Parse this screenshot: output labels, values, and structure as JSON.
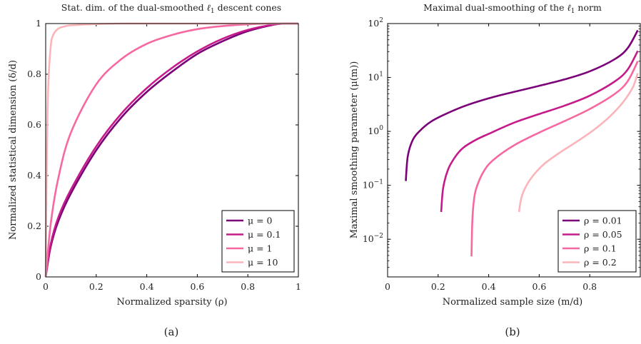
{
  "captions": {
    "a": "(a)",
    "b": "(b)"
  },
  "chart_data": [
    {
      "type": "line",
      "title": "Stat. dim. of the dual-smoothed ℓ1 descent cones",
      "title_parts": [
        "Stat. dim. of the dual-smoothed ",
        "ℓ",
        "1",
        " descent cones"
      ],
      "xlabel": "Normalized sparsity (ρ)",
      "ylabel": "Normalized statistical dimension (δ/d)",
      "xlim": [
        0,
        1
      ],
      "ylim": [
        0,
        1
      ],
      "xticks": [
        "0",
        "0.2",
        "0.4",
        "0.6",
        "0.8",
        "1"
      ],
      "yticks": [
        "0",
        "0.2",
        "0.4",
        "0.6",
        "0.8",
        "1"
      ],
      "legend_position": "bottom-right",
      "series": [
        {
          "name": "μ = 0",
          "color": "#7a0177",
          "x": [
            0,
            0.02,
            0.05,
            0.1,
            0.2,
            0.3,
            0.4,
            0.5,
            0.6,
            0.7,
            0.8,
            0.9,
            0.95,
            1
          ],
          "y": [
            0,
            0.12,
            0.22,
            0.33,
            0.5,
            0.63,
            0.73,
            0.81,
            0.88,
            0.93,
            0.97,
            0.995,
            1,
            1
          ]
        },
        {
          "name": "μ = 0.1",
          "color": "#c51b8a",
          "x": [
            0,
            0.02,
            0.05,
            0.1,
            0.2,
            0.3,
            0.4,
            0.5,
            0.6,
            0.7,
            0.8,
            0.9,
            0.95,
            1
          ],
          "y": [
            0,
            0.13,
            0.235,
            0.345,
            0.515,
            0.645,
            0.745,
            0.825,
            0.89,
            0.94,
            0.975,
            0.996,
            1,
            1
          ]
        },
        {
          "name": "μ = 1",
          "color": "#f768a1",
          "x": [
            0,
            0.02,
            0.05,
            0.1,
            0.2,
            0.3,
            0.4,
            0.5,
            0.6,
            0.7,
            0.8,
            0.9,
            1
          ],
          "y": [
            0,
            0.21,
            0.39,
            0.57,
            0.76,
            0.86,
            0.92,
            0.955,
            0.978,
            0.99,
            0.997,
            1,
            1
          ]
        },
        {
          "name": "μ = 10",
          "color": "#fbb4b9",
          "x": [
            0,
            0.005,
            0.01,
            0.02,
            0.03,
            0.05,
            0.08,
            0.1,
            0.15,
            0.2,
            0.3,
            0.5,
            1
          ],
          "y": [
            0,
            0.5,
            0.75,
            0.91,
            0.955,
            0.98,
            0.99,
            0.993,
            0.996,
            0.998,
            1,
            1,
            1
          ]
        }
      ]
    },
    {
      "type": "line",
      "title": "Maximal dual-smoothing of the ℓ1 norm",
      "title_parts": [
        "Maximal dual-smoothing of the ",
        "ℓ",
        "1",
        " norm"
      ],
      "xlabel": "Normalized sample size (m/d)",
      "ylabel": "Maximal smoothing parameter (μ(m))",
      "xlim": [
        0,
        1
      ],
      "y_scale": "log",
      "ylim": [
        0.002,
        100
      ],
      "xticks": [
        "0",
        "0.2",
        "0.4",
        "0.6",
        "0.8"
      ],
      "yticks": [
        {
          "mantissa": "10",
          "exp": "2",
          "value": 100
        },
        {
          "mantissa": "10",
          "exp": "1",
          "value": 10
        },
        {
          "mantissa": "10",
          "exp": "0",
          "value": 1
        },
        {
          "mantissa": "10",
          "exp": "−1",
          "value": 0.1
        },
        {
          "mantissa": "10",
          "exp": "−2",
          "value": 0.01
        }
      ],
      "legend_position": "bottom-right",
      "series": [
        {
          "name": "ρ = 0.01",
          "color": "#7a0177",
          "x": [
            0.072,
            0.08,
            0.1,
            0.13,
            0.17,
            0.22,
            0.3,
            0.4,
            0.5,
            0.6,
            0.7,
            0.8,
            0.9,
            0.95,
            0.99
          ],
          "y": [
            0.12,
            0.35,
            0.7,
            1.05,
            1.5,
            2.0,
            2.9,
            4.1,
            5.4,
            7.0,
            9.2,
            13,
            22,
            35,
            75
          ]
        },
        {
          "name": "ρ = 0.05",
          "color": "#c51b8a",
          "x": [
            0.212,
            0.22,
            0.24,
            0.27,
            0.3,
            0.35,
            0.4,
            0.5,
            0.6,
            0.7,
            0.8,
            0.9,
            0.95,
            0.99
          ],
          "y": [
            0.032,
            0.09,
            0.2,
            0.35,
            0.5,
            0.7,
            0.9,
            1.45,
            2.1,
            3.0,
            4.6,
            8.5,
            14,
            31
          ]
        },
        {
          "name": "ρ = 0.1",
          "color": "#f768a1",
          "x": [
            0.332,
            0.335,
            0.34,
            0.35,
            0.38,
            0.42,
            0.5,
            0.6,
            0.7,
            0.8,
            0.9,
            0.95,
            0.99
          ],
          "y": [
            0.0048,
            0.02,
            0.045,
            0.085,
            0.18,
            0.3,
            0.55,
            0.95,
            1.55,
            2.6,
            5.0,
            8.5,
            20
          ]
        },
        {
          "name": "ρ = 0.2",
          "color": "#fbb4b9",
          "x": [
            0.52,
            0.53,
            0.55,
            0.58,
            0.62,
            0.68,
            0.75,
            0.82,
            0.88,
            0.93,
            0.97,
            0.99
          ],
          "y": [
            0.032,
            0.06,
            0.1,
            0.16,
            0.25,
            0.4,
            0.65,
            1.1,
            1.9,
            3.4,
            6.5,
            12
          ]
        }
      ]
    }
  ]
}
